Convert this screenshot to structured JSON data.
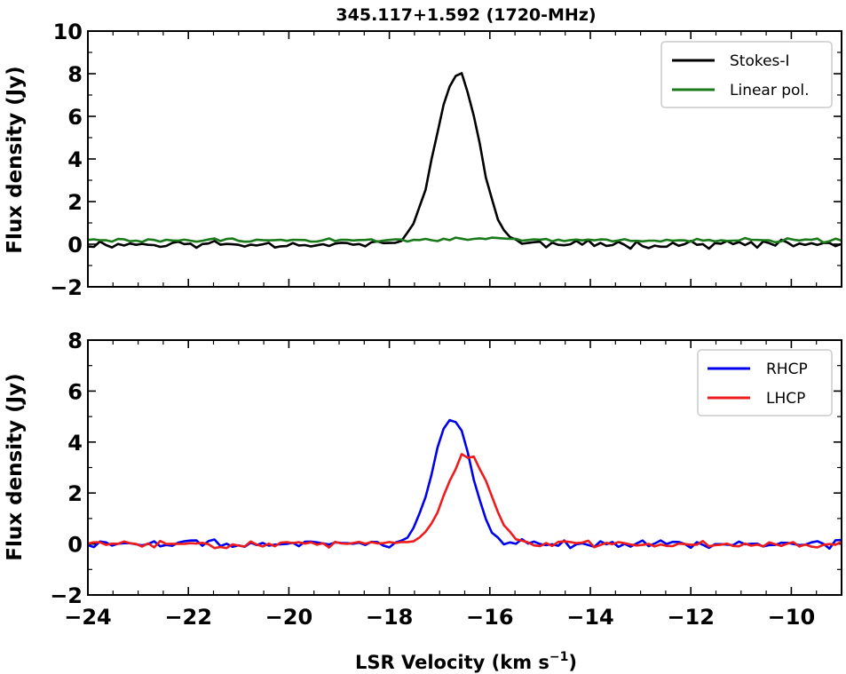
{
  "title": "345.117+1.592 (1720-MHz)",
  "chart_data": [
    {
      "type": "line",
      "ylabel": "Flux density (Jy)",
      "xlim": [
        -24,
        -9
      ],
      "ylim": [
        -2,
        10
      ],
      "yticks": [
        -2,
        0,
        2,
        4,
        6,
        8,
        10
      ],
      "ytick_labels": [
        "−2",
        "0",
        "2",
        "4",
        "6",
        "8",
        "10"
      ],
      "legend_position": "top-right",
      "series": [
        {
          "name": "Stokes-I",
          "color": "#000000",
          "line_shape": "noisy-gaussian",
          "center": -16.65,
          "peak": 8.1,
          "sigma": 0.42,
          "baseline": 0.0,
          "noise": 0.13,
          "seed": 11
        },
        {
          "name": "Linear pol.",
          "color": "#1a7a1a",
          "line_shape": "noisy-gaussian",
          "center": -16.65,
          "peak": 0.1,
          "sigma": 0.5,
          "baseline": 0.18,
          "noise": 0.07,
          "seed": 29
        }
      ]
    },
    {
      "type": "line",
      "xlabel": "LSR Velocity (km s−1)",
      "xlabel_main": "LSR Velocity (km s",
      "xlabel_exp": "−1",
      "xlabel_close": ")",
      "ylabel": "Flux density (Jy)",
      "xlim": [
        -24,
        -9
      ],
      "ylim": [
        -2,
        8
      ],
      "xticks": [
        -24,
        -22,
        -20,
        -18,
        -16,
        -14,
        -12,
        -10
      ],
      "xtick_labels": [
        "−24",
        "−22",
        "−20",
        "−18",
        "−16",
        "−14",
        "−12",
        "−10"
      ],
      "yticks": [
        -2,
        0,
        2,
        4,
        6,
        8
      ],
      "ytick_labels": [
        "−2",
        "0",
        "2",
        "4",
        "6",
        "8"
      ],
      "legend_position": "top-right",
      "series": [
        {
          "name": "RHCP",
          "color": "#0000ee",
          "line_shape": "noisy-gaussian",
          "center": -16.75,
          "peak": 5.0,
          "sigma": 0.38,
          "baseline": 0.0,
          "noise": 0.12,
          "seed": 47
        },
        {
          "name": "LHCP",
          "color": "#ee1c1c",
          "line_shape": "noisy-gaussian",
          "center": -16.45,
          "peak": 3.5,
          "sigma": 0.42,
          "baseline": 0.0,
          "noise": 0.1,
          "seed": 83
        }
      ]
    }
  ]
}
